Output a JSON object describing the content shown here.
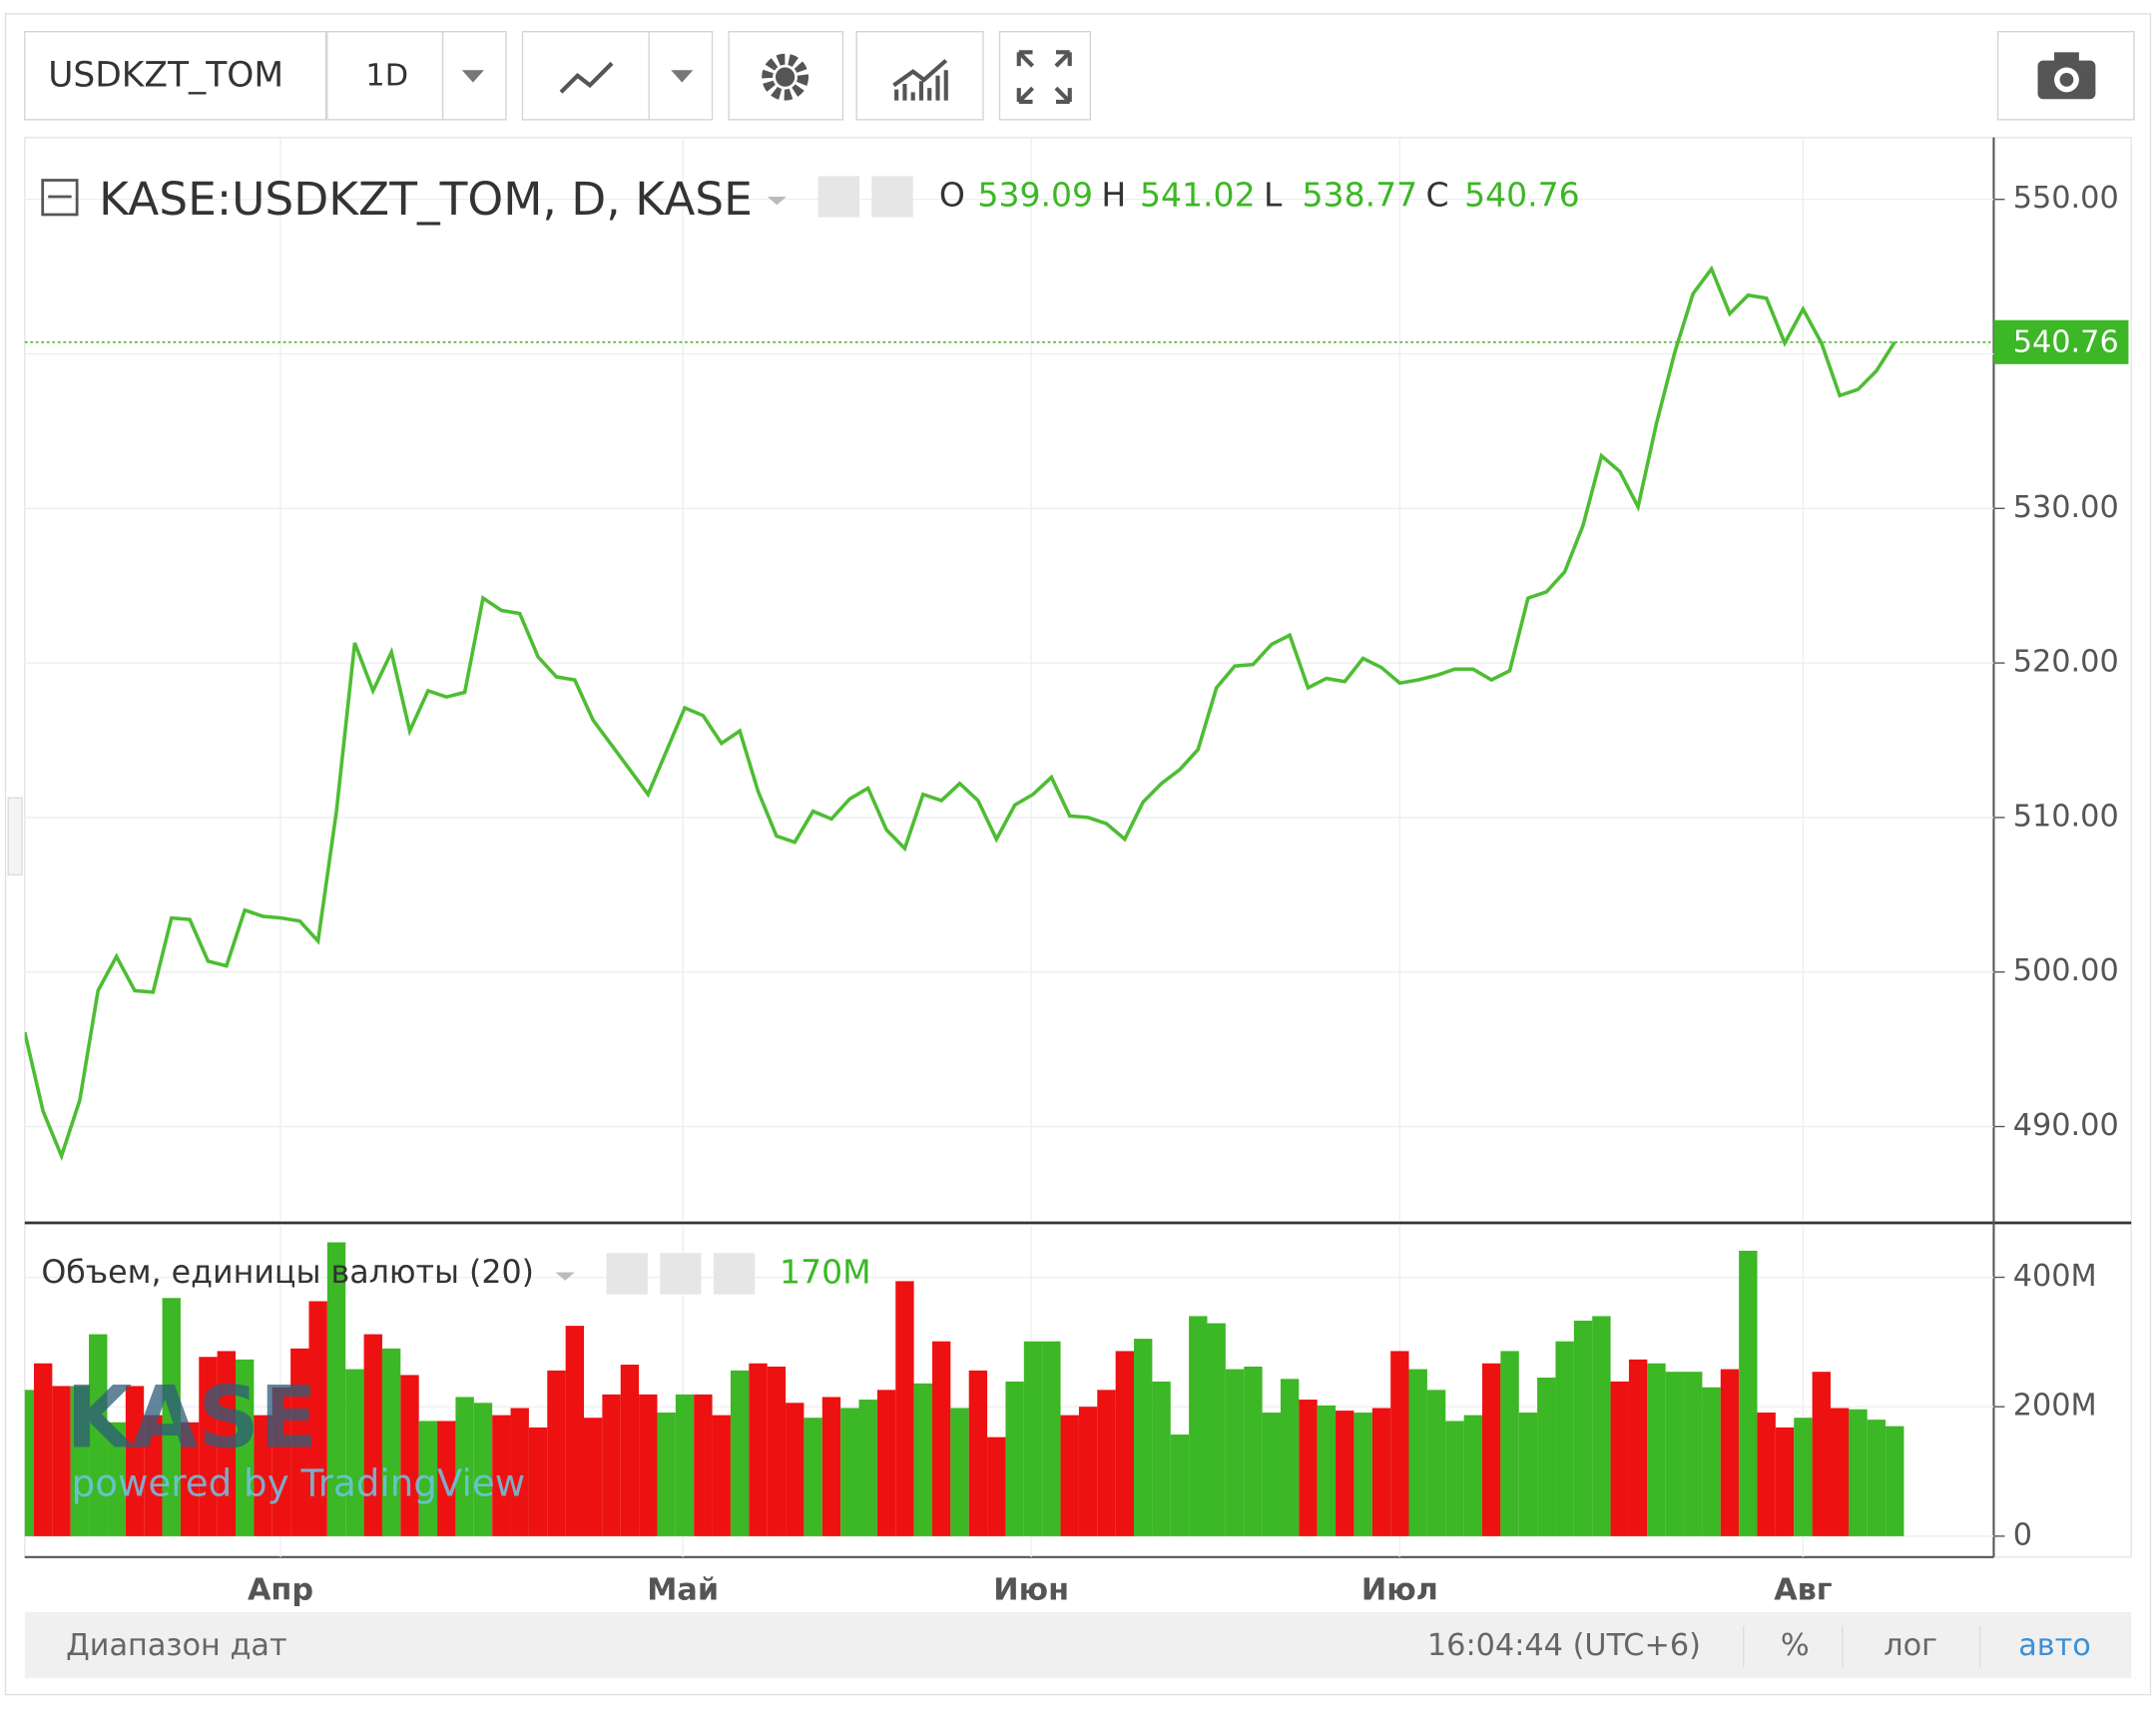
{
  "toolbar": {
    "symbol": "USDKZT_TOM",
    "interval": "1D"
  },
  "chart_data": [
    {
      "type": "line",
      "title": "KASE:USDKZT_TOM, D, KASE",
      "color": "#4dbd33",
      "grid": true,
      "ohlc": [
        {
          "label": "O",
          "value": 539.09
        },
        {
          "label": "H",
          "value": 541.02
        },
        {
          "label": "L",
          "value": 538.77
        },
        {
          "label": "C",
          "value": 540.76
        }
      ],
      "values": [
        496.1,
        491.0,
        488.1,
        491.7,
        498.8,
        501.0,
        498.8,
        498.7,
        503.5,
        503.4,
        500.7,
        500.4,
        504.0,
        503.6,
        503.5,
        503.3,
        502.0,
        510.4,
        521.3,
        518.2,
        520.7,
        515.6,
        518.2,
        517.8,
        518.1,
        524.2,
        523.4,
        523.2,
        520.4,
        519.1,
        518.9,
        516.3,
        514.7,
        513.1,
        511.5,
        514.3,
        517.1,
        516.6,
        514.8,
        515.6,
        511.7,
        508.8,
        508.4,
        510.4,
        509.9,
        511.2,
        511.9,
        509.2,
        508.0,
        511.5,
        511.1,
        512.2,
        511.1,
        508.6,
        510.8,
        511.5,
        512.6,
        510.1,
        510.0,
        509.6,
        508.6,
        511.0,
        512.2,
        513.1,
        514.4,
        518.4,
        519.8,
        519.9,
        521.2,
        521.8,
        518.4,
        519.0,
        518.8,
        520.3,
        519.7,
        518.7,
        518.9,
        519.2,
        519.6,
        519.6,
        518.9,
        519.5,
        524.2,
        524.6,
        525.9,
        528.9,
        533.4,
        532.4,
        530.1,
        535.5,
        540.1,
        543.9,
        545.5,
        542.6,
        543.8,
        543.6,
        540.7,
        542.9,
        540.7,
        537.3,
        537.7,
        538.9,
        540.76
      ],
      "xlim": [
        0,
        107.4
      ],
      "xticks": [
        {
          "value": 13.95,
          "label": "Апр"
        },
        {
          "value": 35.9,
          "label": "Май"
        },
        {
          "value": 54.9,
          "label": "Июн"
        },
        {
          "value": 75.0,
          "label": "Июл"
        },
        {
          "value": 97.0,
          "label": "Авг"
        }
      ],
      "ylim": [
        483.86,
        554.0
      ],
      "yticks": [
        {
          "value": 490,
          "label": "490.00"
        },
        {
          "value": 500,
          "label": "500.00"
        },
        {
          "value": 510,
          "label": "510.00"
        },
        {
          "value": 520,
          "label": "520.00"
        },
        {
          "value": 530,
          "label": "530.00"
        },
        {
          "value": 540,
          "label": "540.00"
        },
        {
          "value": 550,
          "label": "550.00"
        }
      ]
    },
    {
      "type": "bar",
      "title": "Объем, единицы валюты (20)",
      "last_label": "170M",
      "up_color": "#3cb725",
      "down_color": "#ee1111",
      "grid": true,
      "values": [
        226,
        267,
        232,
        232,
        312,
        176,
        232,
        187,
        368,
        176,
        277,
        286,
        273,
        187,
        230,
        290,
        363,
        454,
        258,
        312,
        290,
        249,
        178,
        178,
        215,
        206,
        187,
        198,
        168,
        256,
        325,
        183,
        219,
        265,
        219,
        191,
        219,
        219,
        187,
        256,
        267,
        262,
        206,
        183,
        215,
        198,
        211,
        226,
        394,
        236,
        301,
        198,
        256,
        153,
        239,
        301,
        301,
        187,
        200,
        226,
        286,
        305,
        239,
        157,
        340,
        329,
        258,
        262,
        191,
        243,
        211,
        202,
        194,
        191,
        198,
        286,
        258,
        226,
        178,
        187,
        267,
        286,
        191,
        245,
        301,
        333,
        340,
        239,
        273,
        267,
        254,
        254,
        230,
        258,
        441,
        191,
        168,
        183,
        254,
        198,
        196,
        180,
        170
      ],
      "ylim": [
        -28,
        482
      ],
      "yticks": [
        0,
        {
          "value": 200,
          "label": "200M"
        },
        {
          "value": 400,
          "label": "400M"
        }
      ]
    }
  ],
  "watermark": {
    "logo": "KASE",
    "credit": "powered by TradingView"
  },
  "footer": {
    "range": "Диапазон дат",
    "time": "16:04:44 (UTC+6)",
    "percent": "%",
    "log": "лог",
    "auto": "авто"
  }
}
